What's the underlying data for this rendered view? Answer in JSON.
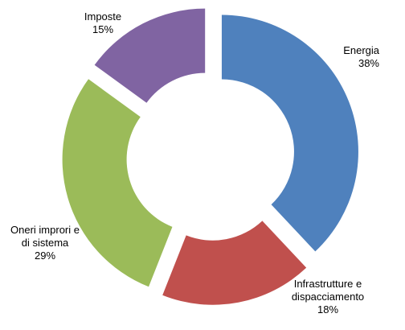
{
  "chart_data": {
    "type": "pie",
    "variant": "exploded-doughnut",
    "categories": [
      "Energia",
      "Infrastrutture e dispacciamento",
      "Oneri improri e di sistema",
      "Imposte"
    ],
    "values": [
      38,
      18,
      29,
      15
    ],
    "value_labels": [
      "38%",
      "18%",
      "29%",
      "15%"
    ],
    "label_lines": [
      [
        "Energia",
        "38%"
      ],
      [
        "Infrastrutture e",
        "dispacciamento",
        "18%"
      ],
      [
        "Oneri improri e",
        "di sistema",
        "29%"
      ],
      [
        "Imposte",
        "15%"
      ]
    ],
    "colors": [
      "#4F81BD",
      "#C0504D",
      "#9BBB59",
      "#8064A2"
    ],
    "title": "",
    "legend": "none"
  }
}
